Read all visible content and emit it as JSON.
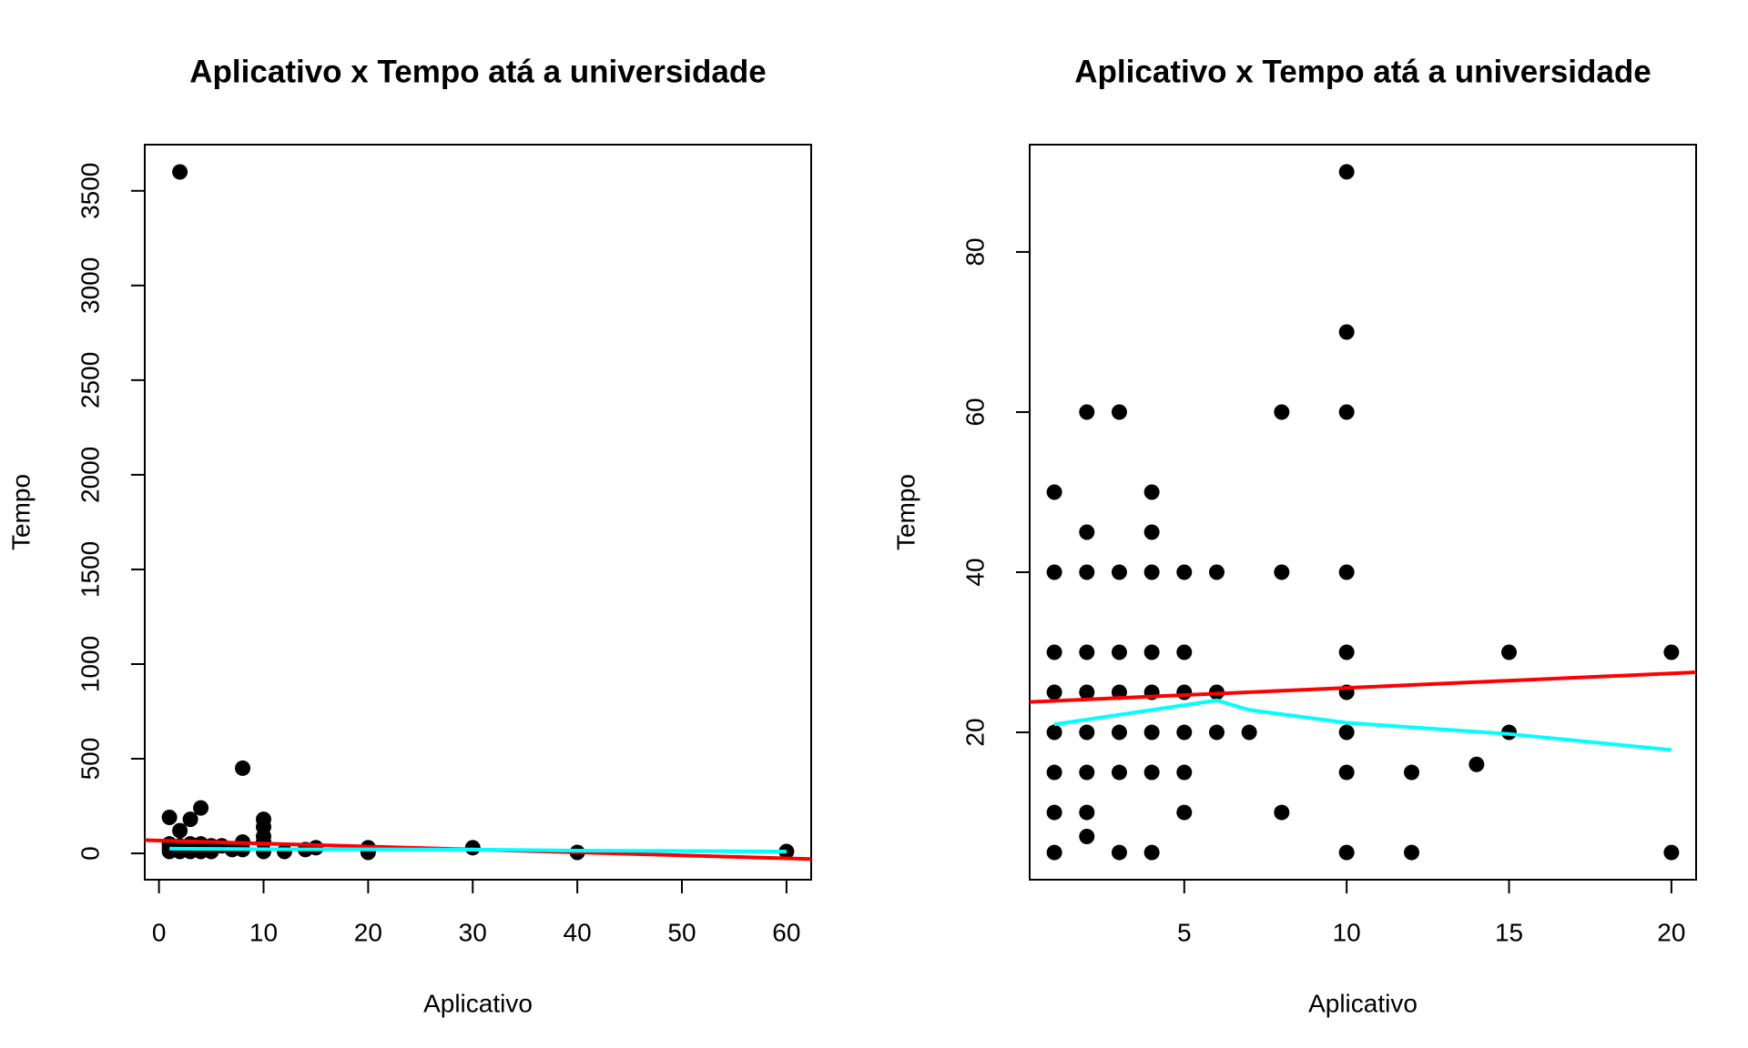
{
  "chart_data": [
    {
      "type": "scatter",
      "title": "Aplicativo x Tempo atá a universidade",
      "xlabel": "Aplicativo",
      "ylabel": "Tempo",
      "color": "#000000",
      "x": [
        1,
        1,
        1,
        1,
        2,
        2,
        2,
        2,
        3,
        3,
        3,
        4,
        4,
        4,
        5,
        5,
        6,
        7,
        8,
        8,
        8,
        10,
        10,
        10,
        10,
        10,
        12,
        14,
        15,
        20,
        20,
        30,
        40,
        60
      ],
      "values": [
        190,
        50,
        30,
        10,
        3600,
        120,
        40,
        10,
        180,
        50,
        10,
        240,
        50,
        10,
        40,
        10,
        40,
        20,
        450,
        60,
        20,
        180,
        140,
        90,
        60,
        10,
        10,
        20,
        30,
        30,
        5,
        30,
        5,
        10
      ],
      "xlim": [
        -1.36,
        62.36
      ],
      "ylim": [
        -139,
        3744
      ],
      "xticks": [
        0,
        10,
        20,
        30,
        40,
        50,
        60
      ],
      "yticks": [
        0,
        500,
        1000,
        1500,
        2000,
        2500,
        3000,
        3500
      ],
      "lines": [
        {
          "color": "#ff0000",
          "x": [
            -1.36,
            62.36
          ],
          "values": [
            70,
            -30
          ]
        },
        {
          "color": "#00ffff",
          "x": [
            1,
            10,
            30,
            40,
            60
          ],
          "values": [
            25,
            22,
            20,
            15,
            10
          ]
        }
      ]
    },
    {
      "type": "scatter",
      "title": "Aplicativo x Tempo atá a universidade",
      "xlabel": "Aplicativo",
      "ylabel": "Tempo",
      "color": "#000000",
      "x": [
        1,
        1,
        1,
        1,
        1,
        1,
        1,
        1,
        2,
        2,
        2,
        2,
        2,
        2,
        2,
        2,
        2,
        3,
        3,
        3,
        3,
        3,
        3,
        3,
        4,
        4,
        4,
        4,
        4,
        4,
        4,
        4,
        5,
        5,
        5,
        5,
        5,
        5,
        6,
        6,
        6,
        7,
        8,
        8,
        8,
        10,
        10,
        10,
        10,
        10,
        10,
        10,
        10,
        10,
        12,
        12,
        14,
        15,
        15,
        20,
        20
      ],
      "values": [
        50,
        40,
        30,
        25,
        20,
        15,
        10,
        5,
        60,
        45,
        40,
        30,
        25,
        20,
        15,
        10,
        7,
        60,
        40,
        30,
        25,
        20,
        15,
        5,
        50,
        45,
        40,
        30,
        25,
        20,
        15,
        5,
        40,
        30,
        25,
        20,
        15,
        10,
        40,
        25,
        20,
        20,
        60,
        40,
        10,
        90,
        70,
        60,
        40,
        30,
        25,
        20,
        15,
        5,
        15,
        5,
        16,
        30,
        20,
        30,
        5
      ],
      "xlim": [
        0.24,
        20.76
      ],
      "ylim": [
        1.6,
        93.4
      ],
      "xticks": [
        5,
        10,
        15,
        20
      ],
      "yticks": [
        20,
        40,
        60,
        80
      ],
      "lines": [
        {
          "color": "#ff0000",
          "x": [
            0.24,
            20.76
          ],
          "values": [
            23.8,
            27.5
          ]
        },
        {
          "color": "#00ffff",
          "x": [
            1,
            6,
            7,
            10,
            15,
            20
          ],
          "values": [
            21,
            24,
            22.8,
            21.2,
            19.8,
            17.8
          ]
        }
      ]
    }
  ]
}
